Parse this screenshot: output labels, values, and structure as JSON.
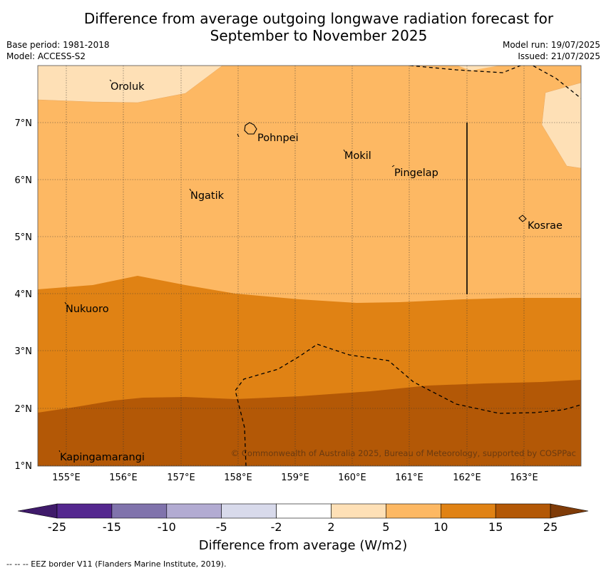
{
  "header": {
    "title_line1": "Difference from average outgoing longwave radiation forecast for",
    "title_line2": "September to November 2025",
    "base_period": "Base period: 1981-2018",
    "model": "Model: ACCESS-S2",
    "model_run": "Model run: 19/07/2025",
    "issued": "Issued: 21/07/2025"
  },
  "map": {
    "lon_labels": [
      "155°E",
      "156°E",
      "157°E",
      "158°E",
      "159°E",
      "160°E",
      "161°E",
      "162°E",
      "163°E"
    ],
    "lat_labels": [
      "7°N",
      "6°N",
      "5°N",
      "4°N",
      "3°N",
      "2°N",
      "1°N"
    ],
    "places": [
      "Oroluk",
      "Pohnpei",
      "Mokil",
      "Pingelap",
      "Ngatik",
      "Kosrae",
      "Nukuoro",
      "Kapingamarangi"
    ],
    "copyright": "© Commonwealth of Australia 2025, Bureau of Meteorology, supported by COSPPac"
  },
  "colorbar": {
    "ticks": [
      "-25",
      "-15",
      "-10",
      "-5",
      "-2",
      "2",
      "5",
      "10",
      "15",
      "25"
    ],
    "colors": [
      "#3f1a6a",
      "#54278f",
      "#8073ac",
      "#b2abd2",
      "#d8daeb",
      "#ffffff",
      "#fee0b6",
      "#fdb863",
      "#e08214",
      "#b35806",
      "#7f3b08"
    ],
    "label": "Difference from average (W/m2)"
  },
  "footer": {
    "legend_text": "--  --  -- EEZ border V11 (Flanders Marine Institute, 2019)."
  }
}
